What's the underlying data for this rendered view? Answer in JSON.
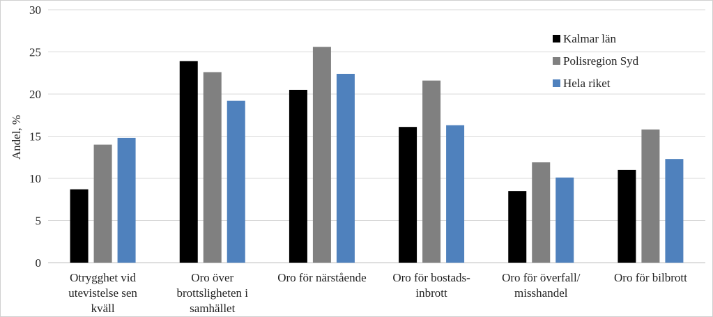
{
  "chart_data": {
    "type": "bar",
    "title": "",
    "xlabel": "",
    "ylabel": "Andel, %",
    "ylim": [
      0,
      30
    ],
    "yticks": [
      0,
      5,
      10,
      15,
      20,
      25,
      30
    ],
    "grid": true,
    "legend_position": "top-right",
    "categories": [
      [
        "Otrygghet vid",
        "utevistelse sen",
        "kväll"
      ],
      [
        "Oro över",
        "brottsligheten i",
        "samhället"
      ],
      [
        "Oro för närstående"
      ],
      [
        "Oro för bostads-",
        "inbrott"
      ],
      [
        "Oro för överfall/",
        "misshandel"
      ],
      [
        "Oro för bilbrott"
      ]
    ],
    "series": [
      {
        "name": "Kalmar län",
        "color": "#000000",
        "values": [
          8.7,
          23.9,
          20.5,
          16.1,
          8.5,
          11.0
        ]
      },
      {
        "name": "Polisregion Syd",
        "color": "#808080",
        "values": [
          14.0,
          22.6,
          25.6,
          21.6,
          11.9,
          15.8
        ]
      },
      {
        "name": "Hela riket",
        "color": "#4f81bd",
        "values": [
          14.8,
          19.2,
          22.4,
          16.3,
          10.1,
          12.3
        ]
      }
    ]
  }
}
